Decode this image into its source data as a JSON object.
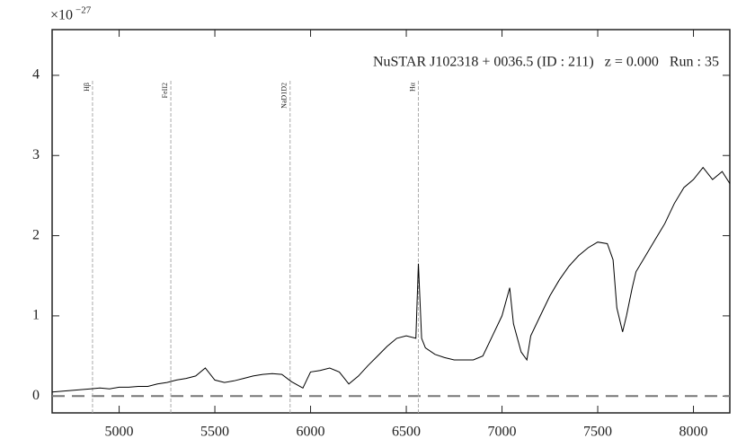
{
  "chart_data": {
    "type": "line",
    "offset_base": "×10",
    "offset_exponent": "−27",
    "annotation": "NuSTAR J102318 + 0036.5 (ID : 211)   z = 0.000   Run : 35",
    "x": [
      4650,
      4700,
      4750,
      4800,
      4850,
      4900,
      4950,
      5000,
      5050,
      5100,
      5150,
      5200,
      5250,
      5300,
      5350,
      5400,
      5450,
      5500,
      5550,
      5600,
      5650,
      5700,
      5750,
      5800,
      5850,
      5900,
      5960,
      6000,
      6050,
      6100,
      6150,
      6200,
      6250,
      6300,
      6350,
      6400,
      6450,
      6500,
      6550,
      6563,
      6580,
      6600,
      6650,
      6700,
      6750,
      6800,
      6850,
      6900,
      6950,
      7000,
      7040,
      7060,
      7100,
      7130,
      7150,
      7200,
      7250,
      7300,
      7350,
      7400,
      7450,
      7500,
      7550,
      7580,
      7600,
      7630,
      7650,
      7680,
      7700,
      7750,
      7800,
      7850,
      7900,
      7950,
      8000,
      8050,
      8100,
      8150,
      8190
    ],
    "values": [
      0.05,
      0.06,
      0.07,
      0.08,
      0.09,
      0.1,
      0.09,
      0.11,
      0.11,
      0.12,
      0.12,
      0.15,
      0.17,
      0.2,
      0.22,
      0.25,
      0.35,
      0.2,
      0.17,
      0.19,
      0.22,
      0.25,
      0.27,
      0.28,
      0.27,
      0.18,
      0.1,
      0.3,
      0.32,
      0.35,
      0.3,
      0.15,
      0.25,
      0.38,
      0.5,
      0.62,
      0.72,
      0.75,
      0.72,
      1.65,
      0.72,
      0.6,
      0.52,
      0.48,
      0.45,
      0.45,
      0.45,
      0.5,
      0.75,
      1.0,
      1.35,
      0.9,
      0.55,
      0.45,
      0.75,
      1.0,
      1.25,
      1.45,
      1.62,
      1.75,
      1.85,
      1.92,
      1.9,
      1.7,
      1.1,
      0.8,
      1.0,
      1.35,
      1.55,
      1.75,
      1.95,
      2.15,
      2.4,
      2.6,
      2.7,
      2.85,
      2.7,
      2.8,
      2.65
    ],
    "color": "#000000",
    "lines": [
      {
        "label": "Hβ",
        "x": 4861
      },
      {
        "label": "FeII2",
        "x": 5270
      },
      {
        "label": "NaD1D2",
        "x": 5893
      },
      {
        "label": "Hα",
        "x": 6563
      }
    ],
    "hline": 0,
    "xlim": [
      4650,
      8190
    ],
    "ylim": [
      -0.21,
      4.57
    ],
    "xticks": [
      5000,
      5500,
      6000,
      6500,
      7000,
      7500,
      8000
    ],
    "yticks": [
      0,
      1,
      2,
      3,
      4
    ]
  }
}
